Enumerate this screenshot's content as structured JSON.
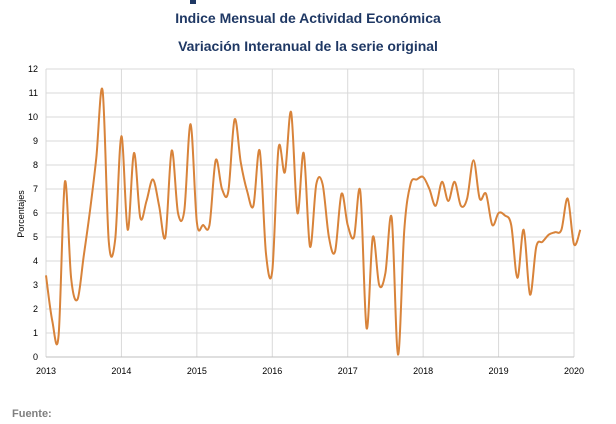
{
  "title": "Indice Mensual de  Actividad Económica",
  "subtitle": "Variación Interanual de la serie original",
  "footer": "Fuente:",
  "colors": {
    "line": "#d8833a",
    "grid": "#d9d9d9",
    "title": "#1f3864"
  },
  "chart_data": {
    "type": "line",
    "title": "Indice Mensual de  Actividad Económica",
    "subtitle": "Variación Interanual de la serie original",
    "ylabel": "Porcentajes",
    "xlabel": "",
    "ylim": [
      0,
      12
    ],
    "yticks": [
      0,
      1,
      2,
      3,
      4,
      5,
      6,
      7,
      8,
      9,
      10,
      11,
      12
    ],
    "xlim": [
      2013,
      2020
    ],
    "xticks": [
      "2013",
      "2014",
      "2015",
      "2016",
      "2017",
      "2018",
      "2019",
      "2020"
    ],
    "grid": true,
    "legend": "none",
    "series": [
      {
        "x": [
          2013.0,
          2013.083,
          2013.167,
          2013.25,
          2013.333,
          2013.417,
          2013.5,
          2013.583,
          2013.667,
          2013.75,
          2013.833,
          2013.917,
          2014.0,
          2014.083,
          2014.167,
          2014.25,
          2014.333,
          2014.417,
          2014.5,
          2014.583,
          2014.667,
          2014.75,
          2014.833,
          2014.917,
          2015.0,
          2015.083,
          2015.167,
          2015.25,
          2015.333,
          2015.417,
          2015.5,
          2015.583,
          2015.667,
          2015.75,
          2015.833,
          2015.917,
          2016.0,
          2016.083,
          2016.167,
          2016.25,
          2016.333,
          2016.417,
          2016.5,
          2016.583,
          2016.667,
          2016.75,
          2016.833,
          2016.917,
          2017.0,
          2017.083,
          2017.167,
          2017.25,
          2017.333,
          2017.417,
          2017.5,
          2017.583,
          2017.667,
          2017.75,
          2017.833,
          2017.917,
          2018.0,
          2018.083,
          2018.167,
          2018.25,
          2018.333,
          2018.417,
          2018.5,
          2018.583,
          2018.667,
          2018.75,
          2018.833,
          2018.917,
          2019.0,
          2019.083,
          2019.167,
          2019.25,
          2019.333,
          2019.417,
          2019.5,
          2019.583,
          2019.667,
          2019.75,
          2019.833,
          2019.917,
          2020.0,
          2020.083
        ],
        "y": [
          3.4,
          1.5,
          0.9,
          7.3,
          3.3,
          2.4,
          4.2,
          6.1,
          8.3,
          11.1,
          4.8,
          4.9,
          9.2,
          5.3,
          8.5,
          5.8,
          6.5,
          7.4,
          6.3,
          5.0,
          8.6,
          6.0,
          6.1,
          9.7,
          5.6,
          5.5,
          5.5,
          8.2,
          7.0,
          6.9,
          9.9,
          8.1,
          6.9,
          6.3,
          8.6,
          4.3,
          3.6,
          8.7,
          7.7,
          10.2,
          6.0,
          8.5,
          4.6,
          7.2,
          7.2,
          5.0,
          4.4,
          6.8,
          5.5,
          5.0,
          6.9,
          1.2,
          5.0,
          3.0,
          3.5,
          5.8,
          0.1,
          5.3,
          7.2,
          7.4,
          7.5,
          7.0,
          6.3,
          7.3,
          6.5,
          7.3,
          6.3,
          6.6,
          8.2,
          6.6,
          6.8,
          5.5,
          6.0,
          5.9,
          5.5,
          3.3,
          5.3,
          2.6,
          4.6,
          4.8,
          5.1,
          5.2,
          5.3,
          6.6,
          4.7,
          5.3
        ]
      }
    ]
  }
}
